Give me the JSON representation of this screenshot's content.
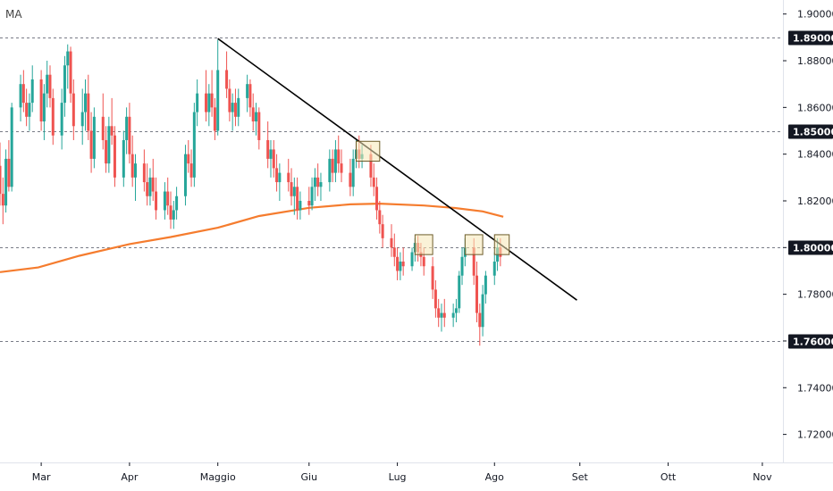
{
  "legend": {
    "label": "MA"
  },
  "colors": {
    "up": "#26a69a",
    "down": "#ef5350",
    "ma": "#f57c2e",
    "trendline": "#000000",
    "hline": "#787b86",
    "box_fill": "#f6e7b6",
    "box_stroke": "#6d5c2a",
    "tag_bg": "#131722",
    "axis_text": "#131722"
  },
  "chart_data": {
    "type": "candlestick",
    "title": "",
    "xlabel": "",
    "ylabel": "",
    "ylim": [
      1.708,
      1.906
    ],
    "y_ticks": [
      "1.90000",
      "1.88000",
      "1.86000",
      "1.84000",
      "1.82000",
      "1.80000",
      "1.78000",
      "1.76000",
      "1.74000",
      "1.72000"
    ],
    "y_tick_values": [
      1.9,
      1.88,
      1.86,
      1.84,
      1.82,
      1.8,
      1.78,
      1.76,
      1.74,
      1.72
    ],
    "x_start": "2020-02-17",
    "x_end": "2020-11-09",
    "x_ticks": [
      {
        "label": "Mar",
        "date": "2020-03-02"
      },
      {
        "label": "Apr",
        "date": "2020-04-01"
      },
      {
        "label": "Maggio",
        "date": "2020-05-01"
      },
      {
        "label": "Giu",
        "date": "2020-06-01"
      },
      {
        "label": "Lug",
        "date": "2020-07-01"
      },
      {
        "label": "Ago",
        "date": "2020-08-03"
      },
      {
        "label": "Set",
        "date": "2020-09-01"
      },
      {
        "label": "Ott",
        "date": "2020-10-01"
      },
      {
        "label": "Nov",
        "date": "2020-11-02"
      }
    ],
    "horizontal_levels": [
      {
        "value": 1.89,
        "label": "1.89000"
      },
      {
        "value": 1.85,
        "label": "1.85000"
      },
      {
        "value": 1.8,
        "label": "1.80000"
      },
      {
        "value": 1.76,
        "label": "1.76000"
      }
    ],
    "trendline": {
      "start": [
        "2020-05-01",
        1.8895
      ],
      "end": [
        "2020-08-31",
        1.7775
      ]
    },
    "boxes": [
      {
        "x0": "2020-06-17",
        "x1": "2020-06-25",
        "y0": 1.837,
        "y1": 1.8455
      },
      {
        "x0": "2020-07-07",
        "x1": "2020-07-13",
        "y0": 1.797,
        "y1": 1.8055
      },
      {
        "x0": "2020-07-24",
        "x1": "2020-07-30",
        "y0": 1.797,
        "y1": 1.8055
      },
      {
        "x0": "2020-08-03",
        "x1": "2020-08-08",
        "y0": 1.797,
        "y1": 1.8055
      }
    ],
    "ma_series": {
      "name": "",
      "points": [
        [
          "2020-02-17",
          1.7895
        ],
        [
          "2020-03-01",
          1.7915
        ],
        [
          "2020-03-15",
          1.7965
        ],
        [
          "2020-04-01",
          1.8015
        ],
        [
          "2020-04-15",
          1.8045
        ],
        [
          "2020-05-01",
          1.8085
        ],
        [
          "2020-05-15",
          1.8135
        ],
        [
          "2020-06-01",
          1.817
        ],
        [
          "2020-06-15",
          1.8185
        ],
        [
          "2020-06-25",
          1.8188
        ],
        [
          "2020-07-10",
          1.818
        ],
        [
          "2020-07-20",
          1.817
        ],
        [
          "2020-07-30",
          1.8155
        ],
        [
          "2020-08-06",
          1.8132
        ]
      ]
    },
    "ohlc": [
      [
        "2020-02-17",
        1.835,
        1.845,
        1.818,
        1.823
      ],
      [
        "2020-02-18",
        1.823,
        1.83,
        1.81,
        1.818
      ],
      [
        "2020-02-19",
        1.818,
        1.842,
        1.815,
        1.838
      ],
      [
        "2020-02-20",
        1.838,
        1.846,
        1.824,
        1.826
      ],
      [
        "2020-02-21",
        1.826,
        1.862,
        1.824,
        1.86
      ],
      [
        "2020-02-24",
        1.86,
        1.874,
        1.854,
        1.87
      ],
      [
        "2020-02-25",
        1.87,
        1.876,
        1.858,
        1.862
      ],
      [
        "2020-02-26",
        1.862,
        1.868,
        1.852,
        1.856
      ],
      [
        "2020-02-27",
        1.856,
        1.866,
        1.85,
        1.862
      ],
      [
        "2020-02-28",
        1.862,
        1.878,
        1.858,
        1.872
      ],
      [
        "2020-03-02",
        1.872,
        1.876,
        1.85,
        1.854
      ],
      [
        "2020-03-03",
        1.854,
        1.87,
        1.846,
        1.866
      ],
      [
        "2020-03-04",
        1.866,
        1.88,
        1.86,
        1.874
      ],
      [
        "2020-03-05",
        1.874,
        1.878,
        1.86,
        1.864
      ],
      [
        "2020-03-06",
        1.864,
        1.868,
        1.844,
        1.848
      ],
      [
        "2020-03-09",
        1.848,
        1.868,
        1.842,
        1.862
      ],
      [
        "2020-03-10",
        1.862,
        1.882,
        1.856,
        1.878
      ],
      [
        "2020-03-11",
        1.878,
        1.887,
        1.868,
        1.884
      ],
      [
        "2020-03-12",
        1.884,
        1.886,
        1.862,
        1.866
      ],
      [
        "2020-03-13",
        1.866,
        1.872,
        1.846,
        1.852
      ],
      [
        "2020-03-16",
        1.852,
        1.868,
        1.844,
        1.858
      ],
      [
        "2020-03-17",
        1.858,
        1.872,
        1.85,
        1.866
      ],
      [
        "2020-03-18",
        1.866,
        1.874,
        1.846,
        1.85
      ],
      [
        "2020-03-19",
        1.85,
        1.858,
        1.832,
        1.838
      ],
      [
        "2020-03-20",
        1.838,
        1.86,
        1.834,
        1.856
      ],
      [
        "2020-03-23",
        1.856,
        1.866,
        1.842,
        1.846
      ],
      [
        "2020-03-24",
        1.846,
        1.852,
        1.832,
        1.836
      ],
      [
        "2020-03-25",
        1.836,
        1.856,
        1.832,
        1.852
      ],
      [
        "2020-03-26",
        1.852,
        1.864,
        1.844,
        1.848
      ],
      [
        "2020-03-27",
        1.848,
        1.852,
        1.826,
        1.83
      ],
      [
        "2020-03-30",
        1.83,
        1.85,
        1.826,
        1.846
      ],
      [
        "2020-03-31",
        1.846,
        1.86,
        1.84,
        1.856
      ],
      [
        "2020-04-01",
        1.856,
        1.862,
        1.836,
        1.84
      ],
      [
        "2020-04-02",
        1.84,
        1.848,
        1.826,
        1.83
      ],
      [
        "2020-04-03",
        1.83,
        1.84,
        1.82,
        1.836
      ],
      [
        "2020-04-06",
        1.836,
        1.842,
        1.824,
        1.828
      ],
      [
        "2020-04-07",
        1.828,
        1.836,
        1.818,
        1.822
      ],
      [
        "2020-04-08",
        1.822,
        1.834,
        1.818,
        1.83
      ],
      [
        "2020-04-09",
        1.83,
        1.838,
        1.82,
        1.824
      ],
      [
        "2020-04-10",
        1.824,
        1.83,
        1.812,
        1.816
      ],
      [
        "2020-04-13",
        1.816,
        1.828,
        1.812,
        1.824
      ],
      [
        "2020-04-14",
        1.824,
        1.83,
        1.814,
        1.818
      ],
      [
        "2020-04-15",
        1.818,
        1.824,
        1.808,
        1.812
      ],
      [
        "2020-04-16",
        1.812,
        1.82,
        1.808,
        1.816
      ],
      [
        "2020-04-17",
        1.816,
        1.826,
        1.812,
        1.822
      ],
      [
        "2020-04-20",
        1.822,
        1.844,
        1.818,
        1.84
      ],
      [
        "2020-04-21",
        1.84,
        1.846,
        1.832,
        1.836
      ],
      [
        "2020-04-22",
        1.836,
        1.842,
        1.826,
        1.83
      ],
      [
        "2020-04-23",
        1.83,
        1.862,
        1.826,
        1.858
      ],
      [
        "2020-04-24",
        1.858,
        1.872,
        1.852,
        1.866
      ],
      [
        "2020-04-27",
        1.866,
        1.876,
        1.854,
        1.858
      ],
      [
        "2020-04-28",
        1.858,
        1.87,
        1.852,
        1.866
      ],
      [
        "2020-04-29",
        1.866,
        1.876,
        1.856,
        1.86
      ],
      [
        "2020-04-30",
        1.86,
        1.864,
        1.846,
        1.85
      ],
      [
        "2020-05-01",
        1.85,
        1.889,
        1.848,
        1.876
      ],
      [
        "2020-05-04",
        1.876,
        1.884,
        1.864,
        1.868
      ],
      [
        "2020-05-05",
        1.868,
        1.872,
        1.854,
        1.858
      ],
      [
        "2020-05-06",
        1.858,
        1.866,
        1.85,
        1.862
      ],
      [
        "2020-05-07",
        1.862,
        1.868,
        1.852,
        1.856
      ],
      [
        "2020-05-08",
        1.856,
        1.868,
        1.852,
        1.864
      ],
      [
        "2020-05-11",
        1.864,
        1.874,
        1.858,
        1.87
      ],
      [
        "2020-05-12",
        1.87,
        1.872,
        1.856,
        1.86
      ],
      [
        "2020-05-13",
        1.86,
        1.866,
        1.85,
        1.854
      ],
      [
        "2020-05-14",
        1.854,
        1.862,
        1.848,
        1.858
      ],
      [
        "2020-05-15",
        1.858,
        1.86,
        1.842,
        1.846
      ],
      [
        "2020-05-18",
        1.846,
        1.854,
        1.834,
        1.838
      ],
      [
        "2020-05-19",
        1.838,
        1.846,
        1.83,
        1.842
      ],
      [
        "2020-05-20",
        1.842,
        1.846,
        1.83,
        1.834
      ],
      [
        "2020-05-21",
        1.834,
        1.84,
        1.824,
        1.828
      ],
      [
        "2020-05-22",
        1.828,
        1.836,
        1.82,
        1.832
      ],
      [
        "2020-05-25",
        1.832,
        1.838,
        1.824,
        1.828
      ],
      [
        "2020-05-26",
        1.828,
        1.834,
        1.818,
        1.822
      ],
      [
        "2020-05-27",
        1.822,
        1.83,
        1.814,
        1.826
      ],
      [
        "2020-05-28",
        1.826,
        1.83,
        1.812,
        1.816
      ],
      [
        "2020-05-29",
        1.816,
        1.824,
        1.812,
        1.82
      ],
      [
        "2020-06-01",
        1.82,
        1.826,
        1.814,
        1.818
      ],
      [
        "2020-06-02",
        1.818,
        1.83,
        1.816,
        1.826
      ],
      [
        "2020-06-03",
        1.826,
        1.834,
        1.82,
        1.83
      ],
      [
        "2020-06-04",
        1.83,
        1.836,
        1.822,
        1.826
      ],
      [
        "2020-06-05",
        1.826,
        1.832,
        1.82,
        1.828
      ],
      [
        "2020-06-08",
        1.828,
        1.842,
        1.824,
        1.838
      ],
      [
        "2020-06-09",
        1.838,
        1.842,
        1.828,
        1.832
      ],
      [
        "2020-06-10",
        1.832,
        1.846,
        1.828,
        1.842
      ],
      [
        "2020-06-11",
        1.842,
        1.848,
        1.832,
        1.836
      ],
      [
        "2020-06-12",
        1.836,
        1.842,
        1.828,
        1.832
      ],
      [
        "2020-06-15",
        1.832,
        1.838,
        1.822,
        1.826
      ],
      [
        "2020-06-16",
        1.826,
        1.842,
        1.822,
        1.838
      ],
      [
        "2020-06-17",
        1.838,
        1.846,
        1.834,
        1.842
      ],
      [
        "2020-06-18",
        1.842,
        1.848,
        1.834,
        1.838
      ],
      [
        "2020-06-19",
        1.838,
        1.844,
        1.834,
        1.84
      ],
      [
        "2020-06-22",
        1.84,
        1.844,
        1.826,
        1.83
      ],
      [
        "2020-06-23",
        1.83,
        1.836,
        1.822,
        1.826
      ],
      [
        "2020-06-24",
        1.826,
        1.83,
        1.812,
        1.816
      ],
      [
        "2020-06-25",
        1.816,
        1.82,
        1.806,
        1.81
      ],
      [
        "2020-06-26",
        1.81,
        1.814,
        1.8,
        1.804
      ],
      [
        "2020-06-29",
        1.804,
        1.81,
        1.796,
        1.8
      ],
      [
        "2020-06-30",
        1.8,
        1.806,
        1.792,
        1.796
      ],
      [
        "2020-07-01",
        1.796,
        1.8,
        1.786,
        1.79
      ],
      [
        "2020-07-02",
        1.79,
        1.798,
        1.786,
        1.794
      ],
      [
        "2020-07-03",
        1.794,
        1.8,
        1.788,
        1.792
      ],
      [
        "2020-07-06",
        1.792,
        1.8,
        1.79,
        1.798
      ],
      [
        "2020-07-07",
        1.798,
        1.804,
        1.794,
        1.802
      ],
      [
        "2020-07-08",
        1.802,
        1.805,
        1.794,
        1.798
      ],
      [
        "2020-07-09",
        1.798,
        1.802,
        1.792,
        1.796
      ],
      [
        "2020-07-10",
        1.796,
        1.8,
        1.788,
        1.792
      ],
      [
        "2020-07-13",
        1.792,
        1.796,
        1.778,
        1.782
      ],
      [
        "2020-07-14",
        1.782,
        1.786,
        1.77,
        1.774
      ],
      [
        "2020-07-15",
        1.774,
        1.778,
        1.766,
        1.77
      ],
      [
        "2020-07-16",
        1.77,
        1.776,
        1.764,
        1.772
      ],
      [
        "2020-07-17",
        1.772,
        1.778,
        1.766,
        1.77
      ],
      [
        "2020-07-20",
        1.77,
        1.776,
        1.766,
        1.772
      ],
      [
        "2020-07-21",
        1.772,
        1.778,
        1.768,
        1.774
      ],
      [
        "2020-07-22",
        1.774,
        1.79,
        1.772,
        1.788
      ],
      [
        "2020-07-23",
        1.788,
        1.8,
        1.784,
        1.796
      ],
      [
        "2020-07-24",
        1.796,
        1.804,
        1.792,
        1.8
      ],
      [
        "2020-07-27",
        1.8,
        1.804,
        1.784,
        1.788
      ],
      [
        "2020-07-28",
        1.788,
        1.794,
        1.768,
        1.772
      ],
      [
        "2020-07-29",
        1.772,
        1.776,
        1.758,
        1.766
      ],
      [
        "2020-07-30",
        1.766,
        1.784,
        1.762,
        1.78
      ],
      [
        "2020-07-31",
        1.78,
        1.79,
        1.776,
        1.788
      ],
      [
        "2020-08-03",
        1.788,
        1.798,
        1.784,
        1.794
      ],
      [
        "2020-08-04",
        1.794,
        1.804,
        1.79,
        1.8
      ],
      [
        "2020-08-05",
        1.8,
        1.804,
        1.792,
        1.796
      ]
    ]
  }
}
